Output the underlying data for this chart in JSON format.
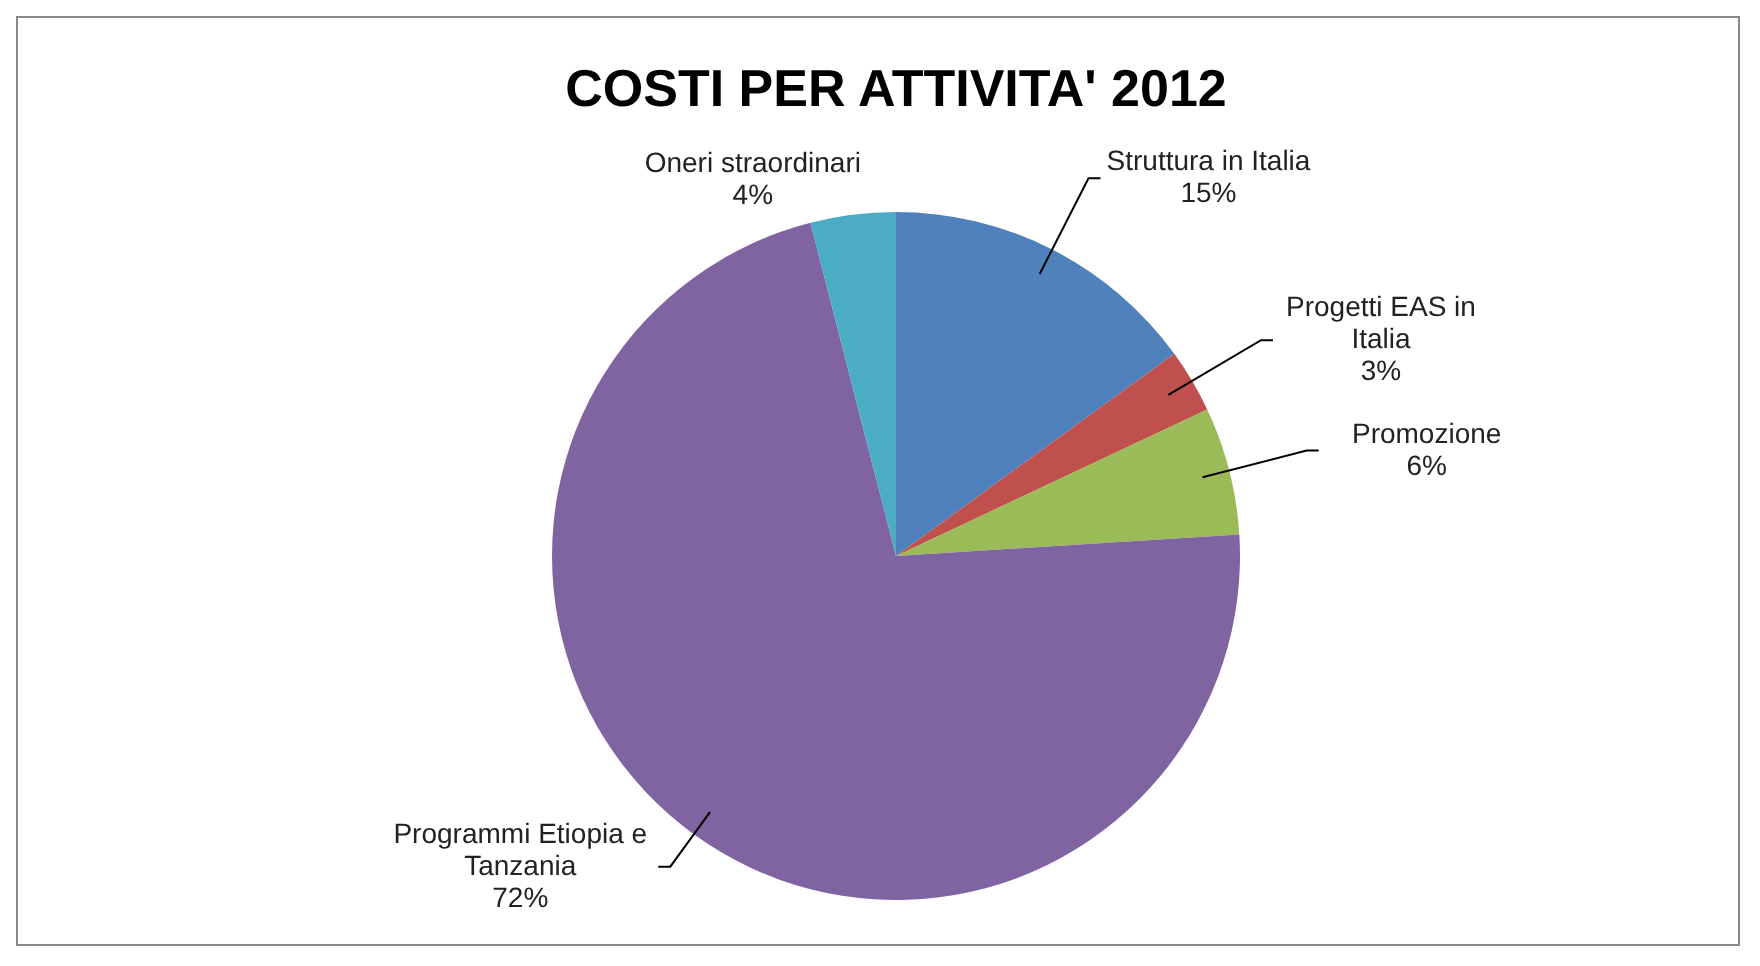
{
  "chart_data": {
    "type": "pie",
    "title": "COSTI PER ATTIVITA' 2012",
    "categories": [
      "Struttura in Italia",
      "Progetti EAS in Italia",
      "Promozione",
      "Programmi Etiopia e Tanzania",
      "Oneri straordinari"
    ],
    "values": [
      15,
      3,
      6,
      72,
      4
    ],
    "colors": [
      "#4f81bd",
      "#c0504d",
      "#9bbb59",
      "#8064a2",
      "#4bacc6"
    ],
    "value_labels": [
      "15%",
      "3%",
      "6%",
      "72%",
      "4%"
    ]
  }
}
